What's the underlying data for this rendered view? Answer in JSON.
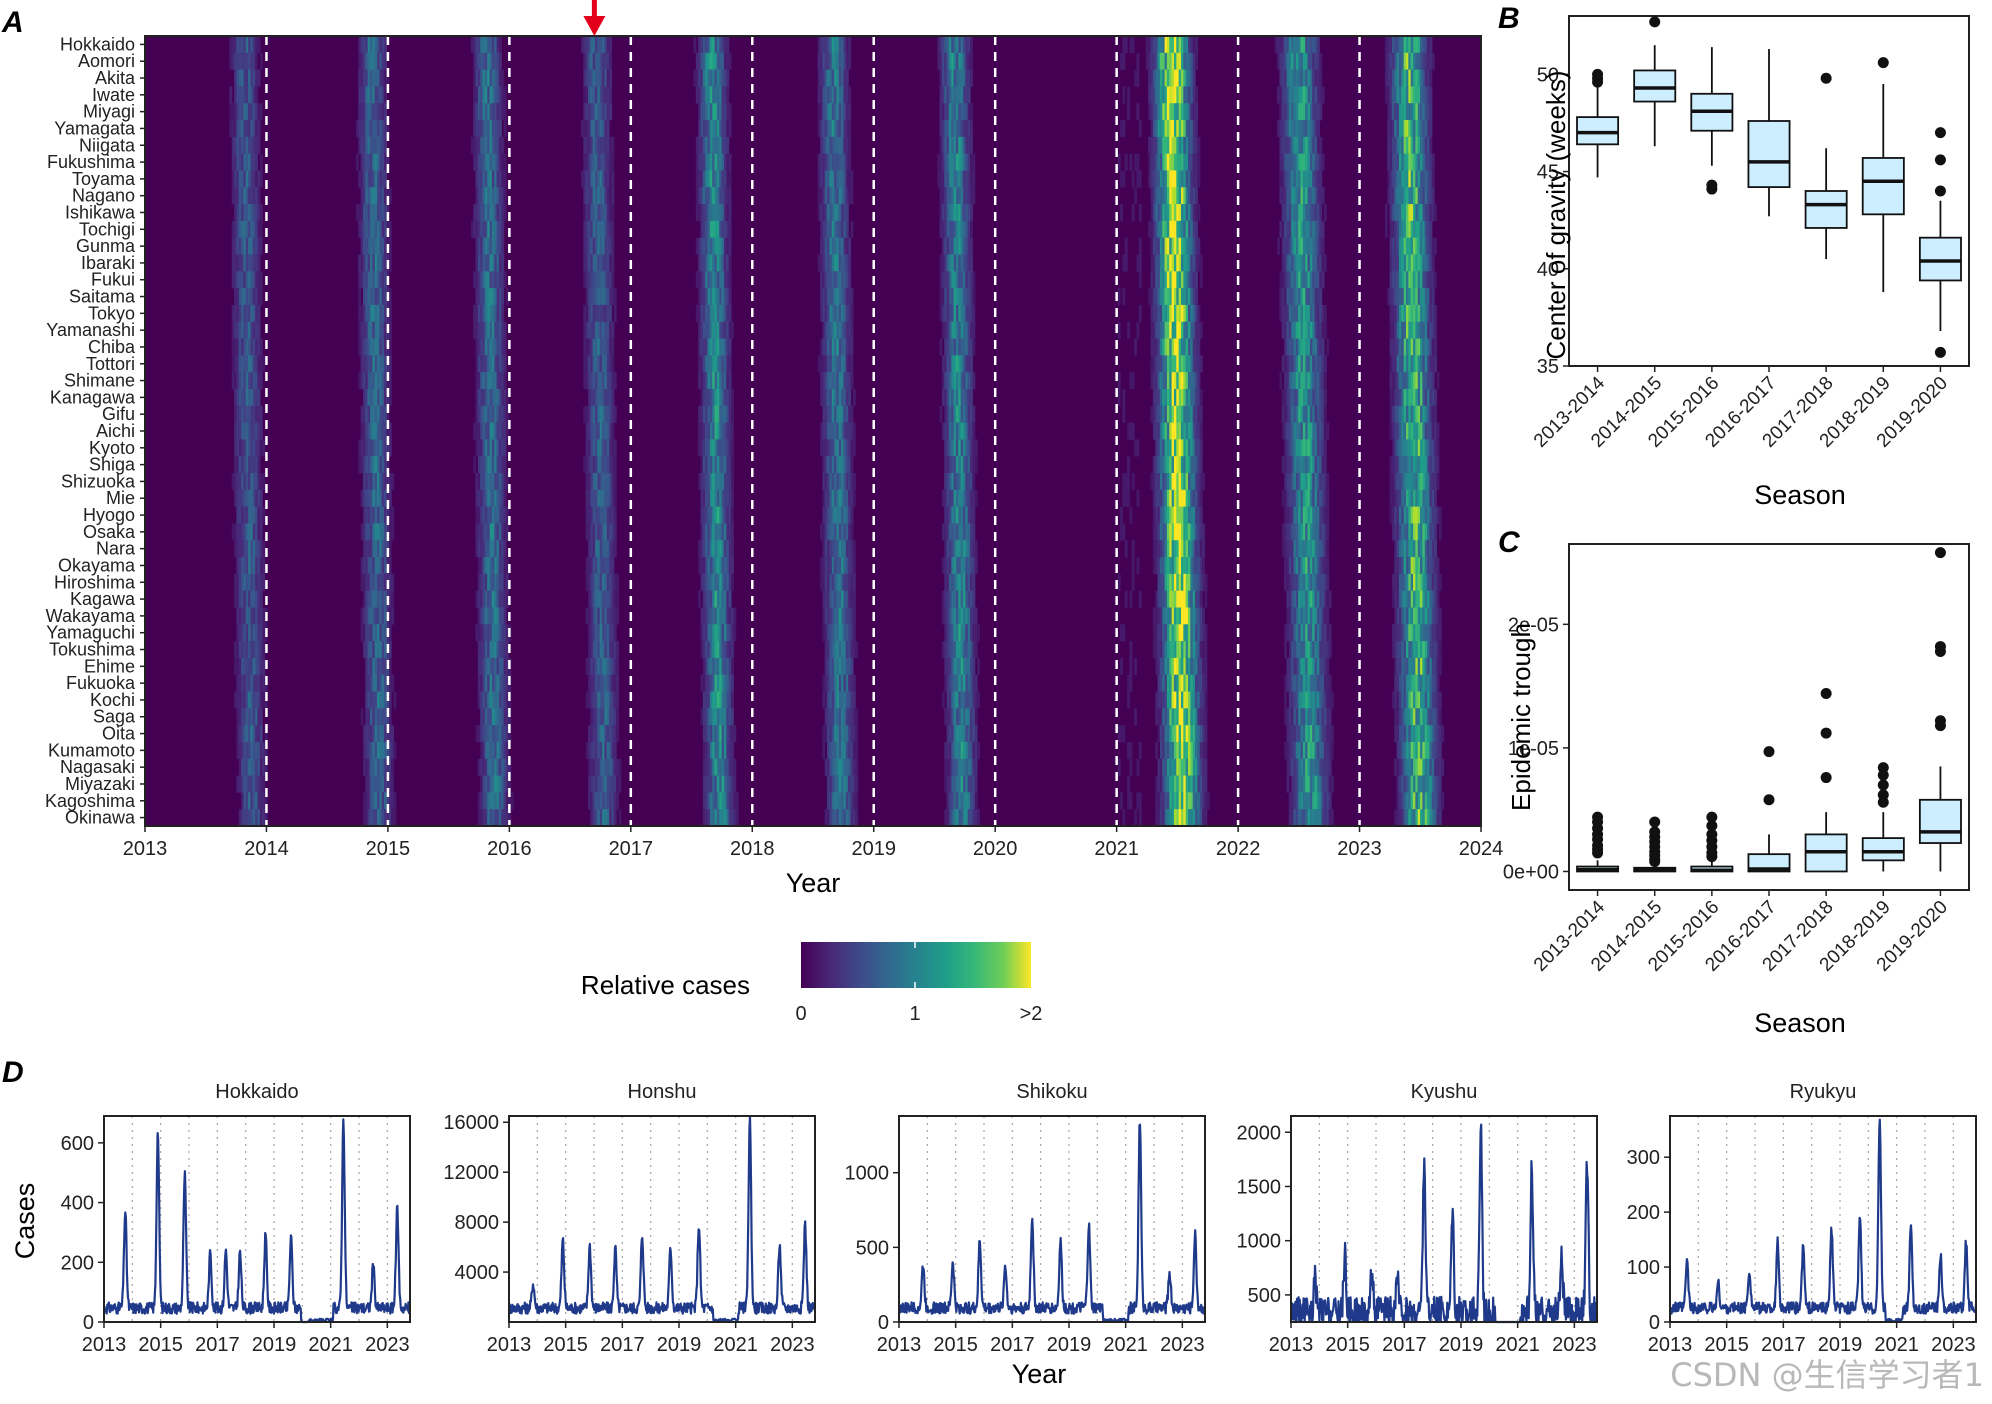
{
  "panel_labels": {
    "a": "A",
    "b": "B",
    "c": "C",
    "d": "D"
  },
  "watermark": "CSDN @生信学习者1",
  "colors": {
    "viridis_low": "#440154",
    "viridis_mid": "#21918c",
    "viridis_high": "#fde725",
    "box_fill": "#cceeff",
    "line": "#1f3a8a",
    "arrow": "#e3001b"
  },
  "chart_data": [
    {
      "id": "A",
      "type": "heatmap",
      "title": "",
      "xlabel": "Year",
      "ylabel": "",
      "xlim": [
        2013,
        2024
      ],
      "x_ticks": [
        "2013",
        "2014",
        "2015",
        "2016",
        "2017",
        "2018",
        "2019",
        "2020",
        "2021",
        "2022",
        "2023",
        "2024"
      ],
      "vertical_dashed_lines": [
        2014,
        2015,
        2016,
        2017,
        2018,
        2019,
        2020,
        2021,
        2022,
        2023
      ],
      "arrow_at_year": 2016.7,
      "rows": [
        "Hokkaido",
        "Aomori",
        "Akita",
        "Iwate",
        "Miyagi",
        "Yamagata",
        "Niigata",
        "Fukushima",
        "Toyama",
        "Nagano",
        "Ishikawa",
        "Tochigi",
        "Gunma",
        "Ibaraki",
        "Fukui",
        "Saitama",
        "Tokyo",
        "Yamanashi",
        "Chiba",
        "Tottori",
        "Shimane",
        "Kanagawa",
        "Gifu",
        "Aichi",
        "Kyoto",
        "Shiga",
        "Shizuoka",
        "Mie",
        "Hyogo",
        "Osaka",
        "Nara",
        "Okayama",
        "Hiroshima",
        "Kagawa",
        "Wakayama",
        "Yamaguchi",
        "Tokushima",
        "Ehime",
        "Fukuoka",
        "Kochi",
        "Saga",
        "Oita",
        "Kumamoto",
        "Nagasaki",
        "Miyazaki",
        "Kagoshima",
        "Okinawa"
      ],
      "legend": {
        "title": "Relative cases",
        "ticks": [
          "0",
          "1",
          ">2"
        ],
        "range": [
          0,
          2
        ]
      },
      "peak_weeks": [
        2013.85,
        2014.9,
        2015.85,
        2016.75,
        2017.7,
        2018.7,
        2019.7,
        2021.5,
        2022.55,
        2023.45
      ],
      "peak_intensity": [
        0.55,
        0.65,
        0.7,
        0.6,
        0.9,
        0.75,
        0.85,
        1.75,
        1.0,
        1.3
      ]
    },
    {
      "id": "B",
      "type": "box",
      "title": "",
      "xlabel": "Season",
      "ylabel": "Center of gravity (weeks)",
      "ylim": [
        35,
        53
      ],
      "y_ticks": [
        35,
        40,
        45,
        50
      ],
      "categories": [
        "2013-2014",
        "2014-2015",
        "2015-2016",
        "2016-2017",
        "2017-2018",
        "2018-2019",
        "2019-2020"
      ],
      "boxes": [
        {
          "q1": 46.4,
          "median": 47.0,
          "q3": 47.8,
          "lo": 44.7,
          "hi": 49.4,
          "outliers": [
            49.6,
            49.8,
            50.0
          ]
        },
        {
          "q1": 48.6,
          "median": 49.3,
          "q3": 50.2,
          "lo": 46.3,
          "hi": 51.5,
          "outliers": [
            52.7
          ]
        },
        {
          "q1": 47.1,
          "median": 48.1,
          "q3": 49.0,
          "lo": 45.3,
          "hi": 51.4,
          "outliers": [
            44.1,
            44.3
          ]
        },
        {
          "q1": 44.2,
          "median": 45.5,
          "q3": 47.6,
          "lo": 42.7,
          "hi": 51.3,
          "outliers": []
        },
        {
          "q1": 42.1,
          "median": 43.3,
          "q3": 44.0,
          "lo": 40.5,
          "hi": 46.2,
          "outliers": [
            49.8
          ]
        },
        {
          "q1": 42.8,
          "median": 44.5,
          "q3": 45.7,
          "lo": 38.8,
          "hi": 49.5,
          "outliers": [
            50.6
          ]
        },
        {
          "q1": 39.4,
          "median": 40.4,
          "q3": 41.6,
          "lo": 36.8,
          "hi": 43.5,
          "outliers": [
            35.7,
            44.0,
            45.6,
            47.0
          ]
        }
      ]
    },
    {
      "id": "C",
      "type": "box",
      "title": "",
      "xlabel": "Season",
      "ylabel": "Epidemic trough",
      "ylim": [
        -1.5e-06,
        2.65e-05
      ],
      "y_ticks": [
        0,
        1e-05,
        2e-05
      ],
      "y_tick_labels": [
        "0e+00",
        "1e-05",
        "2e-05"
      ],
      "categories": [
        "2013-2014",
        "2014-2015",
        "2015-2016",
        "2016-2017",
        "2017-2018",
        "2018-2019",
        "2019-2020"
      ],
      "boxes": [
        {
          "q1": 0.0,
          "median": 1.5e-07,
          "q3": 4e-07,
          "lo": 0.0,
          "hi": 9e-07,
          "outliers": [
            1.5e-06,
            1.8e-06,
            2.1e-06,
            2.6e-06,
            3e-06,
            3.5e-06,
            4e-06,
            4.4e-06
          ]
        },
        {
          "q1": 0.0,
          "median": 1e-07,
          "q3": 3e-07,
          "lo": 0.0,
          "hi": 7e-07,
          "outliers": [
            8e-07,
            1e-06,
            1.3e-06,
            1.6e-06,
            2e-06,
            2.4e-06,
            2.8e-06,
            3.2e-06,
            4e-06
          ]
        },
        {
          "q1": 0.0,
          "median": 1e-07,
          "q3": 4e-07,
          "lo": 0.0,
          "hi": 9e-07,
          "outliers": [
            1.2e-06,
            1.5e-06,
            2e-06,
            2.5e-06,
            3e-06,
            3.7e-06,
            4.4e-06
          ]
        },
        {
          "q1": 0.0,
          "median": 2e-07,
          "q3": 1.4e-06,
          "lo": 0.0,
          "hi": 3e-06,
          "outliers": [
            5.8e-06,
            9.7e-06
          ]
        },
        {
          "q1": 0.0,
          "median": 1.6e-06,
          "q3": 3e-06,
          "lo": 0.0,
          "hi": 4.8e-06,
          "outliers": [
            7.6e-06,
            1.12e-05,
            1.44e-05
          ]
        },
        {
          "q1": 9e-07,
          "median": 1.6e-06,
          "q3": 2.7e-06,
          "lo": 0.0,
          "hi": 4.8e-06,
          "outliers": [
            5.6e-06,
            6.2e-06,
            7e-06,
            7.8e-06,
            8.4e-06
          ]
        },
        {
          "q1": 2.3e-06,
          "median": 3.2e-06,
          "q3": 5.8e-06,
          "lo": 0.0,
          "hi": 8.5e-06,
          "outliers": [
            1.18e-05,
            1.22e-05,
            1.78e-05,
            1.82e-05,
            2.58e-05
          ]
        }
      ]
    },
    {
      "id": "D",
      "type": "line",
      "title": "",
      "xlabel": "Year",
      "ylabel": "Cases",
      "x_ticks": [
        "2013",
        "2015",
        "2017",
        "2019",
        "2021",
        "2023"
      ],
      "facets": [
        {
          "name": "Hokkaido",
          "ylim": [
            0,
            690
          ],
          "y_ticks": [
            0,
            200,
            400,
            600
          ],
          "peaks": [
            [
              2013.75,
              380
            ],
            [
              2014.9,
              650
            ],
            [
              2015.85,
              500
            ],
            [
              2016.75,
              240
            ],
            [
              2017.3,
              250
            ],
            [
              2017.8,
              240
            ],
            [
              2018.7,
              300
            ],
            [
              2019.6,
              290
            ],
            [
              2021.45,
              690
            ],
            [
              2022.5,
              200
            ],
            [
              2023.35,
              390
            ]
          ]
        },
        {
          "name": "Honshu",
          "ylim": [
            0,
            16500
          ],
          "y_ticks": [
            4000,
            8000,
            12000,
            16000
          ],
          "peaks": [
            [
              2013.85,
              3300
            ],
            [
              2014.9,
              6800
            ],
            [
              2015.85,
              6300
            ],
            [
              2016.75,
              6100
            ],
            [
              2017.7,
              7200
            ],
            [
              2018.7,
              6200
            ],
            [
              2019.7,
              8000
            ],
            [
              2021.5,
              16500
            ],
            [
              2022.55,
              6400
            ],
            [
              2023.45,
              8000
            ]
          ]
        },
        {
          "name": "Shikoku",
          "ylim": [
            0,
            1380
          ],
          "y_ticks": [
            0,
            500,
            1000
          ],
          "peaks": [
            [
              2013.85,
              400
            ],
            [
              2014.9,
              420
            ],
            [
              2015.85,
              560
            ],
            [
              2016.75,
              400
            ],
            [
              2017.7,
              720
            ],
            [
              2018.7,
              560
            ],
            [
              2019.7,
              660
            ],
            [
              2021.5,
              1380
            ],
            [
              2022.55,
              350
            ],
            [
              2023.45,
              600
            ]
          ]
        },
        {
          "name": "Kyushu",
          "ylim": [
            250,
            2150
          ],
          "y_ticks": [
            500,
            1000,
            1500,
            2000
          ],
          "peaks": [
            [
              2013.85,
              700
            ],
            [
              2014.9,
              920
            ],
            [
              2015.85,
              800
            ],
            [
              2016.75,
              720
            ],
            [
              2017.7,
              1820
            ],
            [
              2018.7,
              1380
            ],
            [
              2019.7,
              2150
            ],
            [
              2021.5,
              1720
            ],
            [
              2022.55,
              900
            ],
            [
              2023.45,
              1800
            ]
          ]
        },
        {
          "name": "Ryukyu",
          "ylim": [
            0,
            375
          ],
          "y_ticks": [
            0,
            100,
            200,
            300
          ],
          "peaks": [
            [
              2013.6,
              115
            ],
            [
              2014.7,
              75
            ],
            [
              2015.8,
              100
            ],
            [
              2016.8,
              150
            ],
            [
              2017.7,
              140
            ],
            [
              2018.7,
              175
            ],
            [
              2019.7,
              200
            ],
            [
              2020.4,
              375
            ],
            [
              2021.5,
              180
            ],
            [
              2022.55,
              130
            ],
            [
              2023.45,
              150
            ]
          ]
        }
      ]
    }
  ]
}
